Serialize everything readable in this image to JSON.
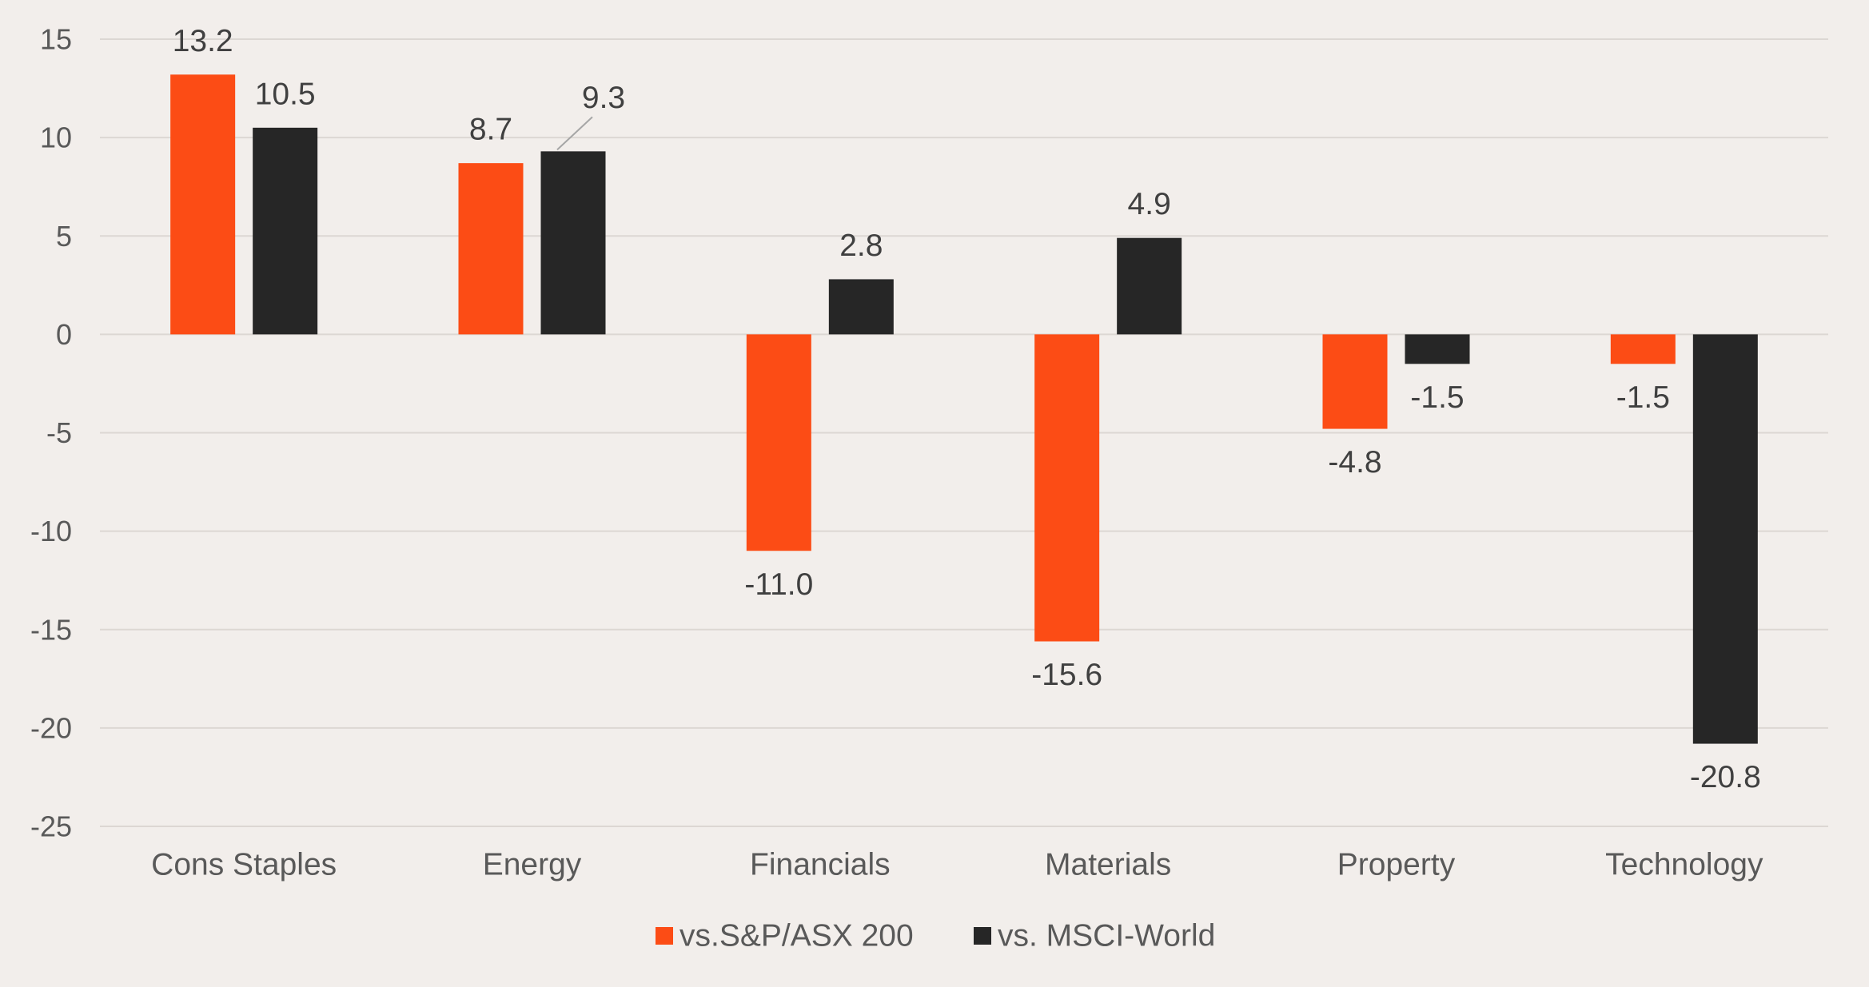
{
  "chart_data": {
    "type": "bar",
    "categories": [
      "Cons Staples",
      "Energy",
      "Financials",
      "Materials",
      "Property",
      "Technology"
    ],
    "series": [
      {
        "name": "vs.S&P/ASX 200",
        "color": "#fc4c15",
        "values": [
          13.2,
          8.7,
          -11.0,
          -15.6,
          -4.8,
          -1.5
        ],
        "labels": [
          "13.2",
          "8.7",
          "-11.0",
          "-15.6",
          "-4.8",
          "-1.5"
        ]
      },
      {
        "name": "vs. MSCI-World",
        "color": "#262626",
        "values": [
          10.5,
          9.3,
          2.8,
          4.9,
          -1.5,
          -20.8
        ],
        "labels": [
          "10.5",
          "9.3",
          "2.8",
          "4.9",
          "-1.5",
          "-20.8"
        ]
      }
    ],
    "yticks": [
      15,
      10,
      5,
      0,
      -5,
      -10,
      -15,
      -20,
      -25
    ],
    "ylim": [
      -25,
      15
    ],
    "grid": true,
    "legend_position": "bottom-center",
    "title": "",
    "xlabel": "",
    "ylabel": ""
  }
}
